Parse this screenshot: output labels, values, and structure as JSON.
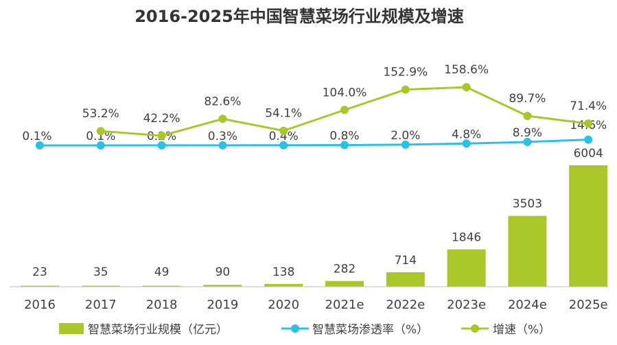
{
  "chart_data": {
    "type": "bar+line",
    "title": "2016-2025年中国智慧菜场行业规模及增速",
    "categories": [
      "2016",
      "2017",
      "2018",
      "2019",
      "2020",
      "2021e",
      "2022e",
      "2023e",
      "2024e",
      "2025e"
    ],
    "series": [
      {
        "name": "智慧菜场行业规模（亿元）",
        "type": "bar",
        "values": [
          23,
          35,
          49,
          90,
          138,
          282,
          714,
          1846,
          3503,
          6004
        ],
        "labels": [
          "23",
          "35",
          "49",
          "90",
          "138",
          "282",
          "714",
          "1846",
          "3503",
          "6004"
        ],
        "color": "#a9c728"
      },
      {
        "name": "智慧菜场渗透率（%）",
        "type": "line",
        "values": [
          0.1,
          0.1,
          0.2,
          0.3,
          0.4,
          0.8,
          2.0,
          4.8,
          8.9,
          14.6
        ],
        "labels": [
          "0.1%",
          "0.1%",
          "0.2%",
          "0.3%",
          "0.4%",
          "0.8%",
          "2.0%",
          "4.8%",
          "8.9%",
          "14.6%"
        ],
        "color": "#29c0ea"
      },
      {
        "name": "增速（%）",
        "type": "line",
        "values": [
          null,
          53.2,
          42.2,
          82.6,
          54.1,
          104.0,
          152.9,
          158.6,
          89.7,
          71.4
        ],
        "labels": [
          "",
          "53.2%",
          "42.2%",
          "82.6%",
          "54.1%",
          "104.0%",
          "152.9%",
          "158.6%",
          "89.7%",
          "71.4%"
        ],
        "color": "#a9c728"
      }
    ],
    "legend_position": "bottom",
    "grid": false
  }
}
